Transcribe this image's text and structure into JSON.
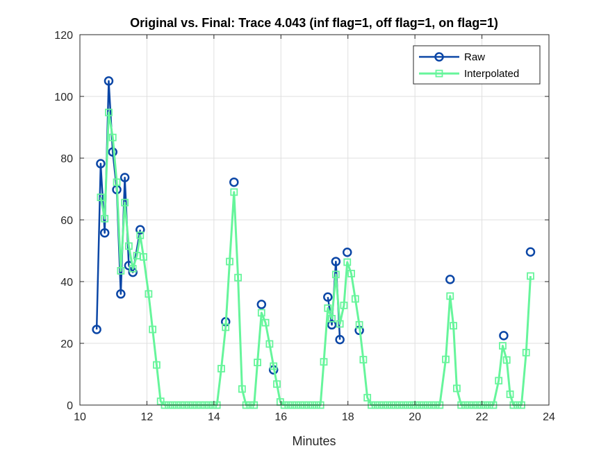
{
  "chart_data": {
    "type": "line",
    "title": "Original vs. Final: Trace 4.043 (inf flag=1, off flag=1, on flag=1)",
    "xlabel": "Minutes",
    "ylabel": "",
    "xlim": [
      10,
      24
    ],
    "ylim": [
      0,
      120
    ],
    "xticks": [
      10,
      12,
      14,
      16,
      18,
      20,
      22,
      24
    ],
    "yticks": [
      0,
      20,
      40,
      60,
      80,
      100,
      120
    ],
    "grid": true,
    "legend_position": "top-right",
    "series": [
      {
        "name": "Raw",
        "color": "#0b46a6",
        "marker": "circle",
        "segments": [
          [
            [
              10.5,
              24.5
            ],
            [
              10.62,
              78.2
            ],
            [
              10.74,
              55.8
            ],
            [
              10.86,
              105
            ],
            [
              10.98,
              82
            ],
            [
              11.1,
              69.8
            ],
            [
              11.22,
              36
            ],
            [
              11.34,
              73.7
            ],
            [
              11.46,
              45.2
            ],
            [
              11.58,
              43
            ],
            [
              11.8,
              56.8
            ]
          ],
          [
            [
              14.35,
              27
            ]
          ],
          [
            [
              14.6,
              72.2
            ]
          ],
          [
            [
              15.42,
              32.6
            ]
          ],
          [
            [
              15.78,
              11.4
            ]
          ],
          [
            [
              17.4,
              35
            ],
            [
              17.52,
              26
            ],
            [
              17.64,
              46.5
            ],
            [
              17.76,
              21.2
            ]
          ],
          [
            [
              17.98,
              49.5
            ]
          ],
          [
            [
              18.34,
              24.2
            ]
          ],
          [
            [
              21.05,
              40.7
            ]
          ],
          [
            [
              22.65,
              22.5
            ]
          ],
          [
            [
              23.45,
              49.6
            ]
          ]
        ]
      },
      {
        "name": "Interpolated",
        "color": "#66f59b",
        "marker": "square",
        "points": [
          [
            10.62,
            67.3
          ],
          [
            10.74,
            60.4
          ],
          [
            10.86,
            94.8
          ],
          [
            10.98,
            86.7
          ],
          [
            11.1,
            72.2
          ],
          [
            11.22,
            43.5
          ],
          [
            11.34,
            65.6
          ],
          [
            11.46,
            51.5
          ],
          [
            11.58,
            44.2
          ],
          [
            11.7,
            48.4
          ],
          [
            11.8,
            55
          ],
          [
            11.9,
            48
          ],
          [
            12.05,
            36
          ],
          [
            12.17,
            24.5
          ],
          [
            12.29,
            13
          ],
          [
            12.41,
            1.2
          ],
          [
            12.53,
            0
          ],
          [
            12.65,
            0
          ],
          [
            12.77,
            0
          ],
          [
            12.89,
            0
          ],
          [
            13.01,
            0
          ],
          [
            13.13,
            0
          ],
          [
            13.25,
            0
          ],
          [
            13.37,
            0
          ],
          [
            13.49,
            0
          ],
          [
            13.61,
            0
          ],
          [
            13.73,
            0
          ],
          [
            13.85,
            0
          ],
          [
            13.97,
            0
          ],
          [
            14.09,
            0
          ],
          [
            14.22,
            11.8
          ],
          [
            14.35,
            25.2
          ],
          [
            14.47,
            46.5
          ],
          [
            14.6,
            69
          ],
          [
            14.72,
            41.3
          ],
          [
            14.84,
            5.2
          ],
          [
            14.96,
            0
          ],
          [
            15.08,
            0
          ],
          [
            15.2,
            0
          ],
          [
            15.3,
            13.8
          ],
          [
            15.42,
            29.9
          ],
          [
            15.54,
            26.7
          ],
          [
            15.66,
            19.8
          ],
          [
            15.78,
            12.6
          ],
          [
            15.88,
            6.8
          ],
          [
            15.98,
            1
          ],
          [
            16.1,
            0
          ],
          [
            16.22,
            0
          ],
          [
            16.34,
            0
          ],
          [
            16.46,
            0
          ],
          [
            16.58,
            0
          ],
          [
            16.7,
            0
          ],
          [
            16.82,
            0
          ],
          [
            16.94,
            0
          ],
          [
            17.06,
            0
          ],
          [
            17.18,
            0
          ],
          [
            17.28,
            14
          ],
          [
            17.4,
            31.4
          ],
          [
            17.52,
            28
          ],
          [
            17.64,
            42.3
          ],
          [
            17.76,
            26.3
          ],
          [
            17.88,
            32.3
          ],
          [
            17.98,
            46.3
          ],
          [
            18.1,
            42.6
          ],
          [
            18.22,
            34.4
          ],
          [
            18.34,
            26
          ],
          [
            18.46,
            14.7
          ],
          [
            18.58,
            2.4
          ],
          [
            18.7,
            0
          ],
          [
            18.82,
            0
          ],
          [
            18.94,
            0
          ],
          [
            19.06,
            0
          ],
          [
            19.18,
            0
          ],
          [
            19.3,
            0
          ],
          [
            19.42,
            0
          ],
          [
            19.54,
            0
          ],
          [
            19.66,
            0
          ],
          [
            19.78,
            0
          ],
          [
            19.9,
            0
          ],
          [
            20.02,
            0
          ],
          [
            20.14,
            0
          ],
          [
            20.26,
            0
          ],
          [
            20.38,
            0
          ],
          [
            20.5,
            0
          ],
          [
            20.62,
            0
          ],
          [
            20.74,
            0
          ],
          [
            20.92,
            14.8
          ],
          [
            21.05,
            35.3
          ],
          [
            21.15,
            25.7
          ],
          [
            21.25,
            5.4
          ],
          [
            21.38,
            0
          ],
          [
            21.5,
            0
          ],
          [
            21.62,
            0
          ],
          [
            21.74,
            0
          ],
          [
            21.86,
            0
          ],
          [
            21.98,
            0
          ],
          [
            22.1,
            0
          ],
          [
            22.22,
            0
          ],
          [
            22.34,
            0
          ],
          [
            22.5,
            7.9
          ],
          [
            22.62,
            19.2
          ],
          [
            22.74,
            14.6
          ],
          [
            22.84,
            3.5
          ],
          [
            22.94,
            0
          ],
          [
            23.06,
            0
          ],
          [
            23.18,
            0
          ],
          [
            23.32,
            17
          ],
          [
            23.45,
            41.8
          ]
        ]
      }
    ]
  }
}
